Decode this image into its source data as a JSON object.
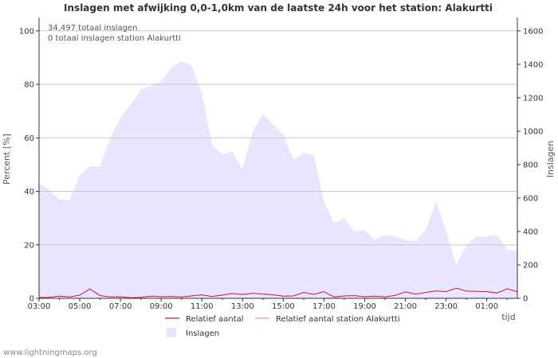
{
  "chart_data": {
    "type": "area",
    "title": "Inslagen met afwijking 0,0-1,0km van de laatste 24h voor het station: Alakurtti",
    "notes": [
      "34.497 totaal inslagen",
      "0 totaal inslagen station Alakurtti"
    ],
    "xlabel": "tijd",
    "ylabel_left": "Percent   [%]",
    "ylabel_right": "Inslagen",
    "x_ticks": [
      "03:00",
      "05:00",
      "07:00",
      "09:00",
      "11:00",
      "13:00",
      "15:00",
      "17:00",
      "19:00",
      "21:00",
      "23:00",
      "01:00"
    ],
    "x_domain_hours": [
      0,
      23.5
    ],
    "y_left_ticks": [
      0,
      20,
      40,
      60,
      80,
      100
    ],
    "y_left_range": [
      0,
      105
    ],
    "y_right_ticks": [
      0,
      200,
      400,
      600,
      800,
      1000,
      1200,
      1400,
      1600
    ],
    "y_right_range": [
      0,
      1680
    ],
    "colors": {
      "area_fill": "#e8e6ff",
      "relatief_line": "#d0103a",
      "station_line": "#f090a8",
      "grid": "#c8c8c8",
      "axis": "#333333"
    },
    "series": [
      {
        "name": "Inslagen",
        "axis": "right",
        "style": "area",
        "x": [
          0,
          0.5,
          1,
          1.5,
          2,
          2.5,
          3,
          3.5,
          4,
          4.5,
          5,
          5.5,
          6,
          6.5,
          7,
          7.5,
          8,
          8.5,
          9,
          9.5,
          10,
          10.5,
          11,
          11.5,
          12,
          12.5,
          13,
          13.5,
          14,
          14.5,
          15,
          15.5,
          16,
          16.5,
          17,
          17.5,
          18,
          18.5,
          19,
          19.5,
          20,
          20.5,
          21,
          21.5,
          22,
          22.5,
          23,
          23.5
        ],
        "values": [
          690,
          650,
          590,
          590,
          740,
          790,
          790,
          960,
          1080,
          1160,
          1250,
          1270,
          1300,
          1380,
          1420,
          1390,
          1230,
          920,
          860,
          880,
          770,
          1000,
          1100,
          1040,
          980,
          830,
          870,
          860,
          580,
          450,
          480,
          400,
          410,
          350,
          380,
          370,
          350,
          340,
          410,
          580,
          400,
          200,
          320,
          370,
          370,
          380,
          290,
          290
        ]
      },
      {
        "name": "Relatief aantal",
        "axis": "left",
        "style": "line",
        "x": [
          0,
          0.5,
          1,
          1.5,
          2,
          2.5,
          3,
          3.5,
          4,
          4.5,
          5,
          5.5,
          6,
          6.5,
          7,
          7.5,
          8,
          8.5,
          9,
          9.5,
          10,
          10.5,
          11,
          11.5,
          12,
          12.5,
          13,
          13.5,
          14,
          14.5,
          15,
          15.5,
          16,
          16.5,
          17,
          17.5,
          18,
          18.5,
          19,
          19.5,
          20,
          20.5,
          21,
          21.5,
          22,
          22.5,
          23,
          23.5
        ],
        "values": [
          0.3,
          0.4,
          0.8,
          0.5,
          1.2,
          3.5,
          1.0,
          0.5,
          0.6,
          0.2,
          0.4,
          0.8,
          0.6,
          0.7,
          0.5,
          0.9,
          1.3,
          0.7,
          1.2,
          1.8,
          1.4,
          1.9,
          1.6,
          1.3,
          0.8,
          0.9,
          2.2,
          1.5,
          2.5,
          0.5,
          0.9,
          1.0,
          0.6,
          0.8,
          0.5,
          1.1,
          2.4,
          1.6,
          2.2,
          2.8,
          2.5,
          3.8,
          2.7,
          2.6,
          2.5,
          2.0,
          3.6,
          2.4
        ]
      },
      {
        "name": "Relatief aantal station Alakurtti",
        "axis": "left",
        "style": "line",
        "x": [
          0,
          23.5
        ],
        "values": [
          0,
          0
        ]
      }
    ],
    "legend": [
      "Relatief aantal",
      "Relatief aantal station Alakurtti",
      "Inslagen"
    ]
  },
  "footer": {
    "credit": "www.lightningmaps.org"
  }
}
